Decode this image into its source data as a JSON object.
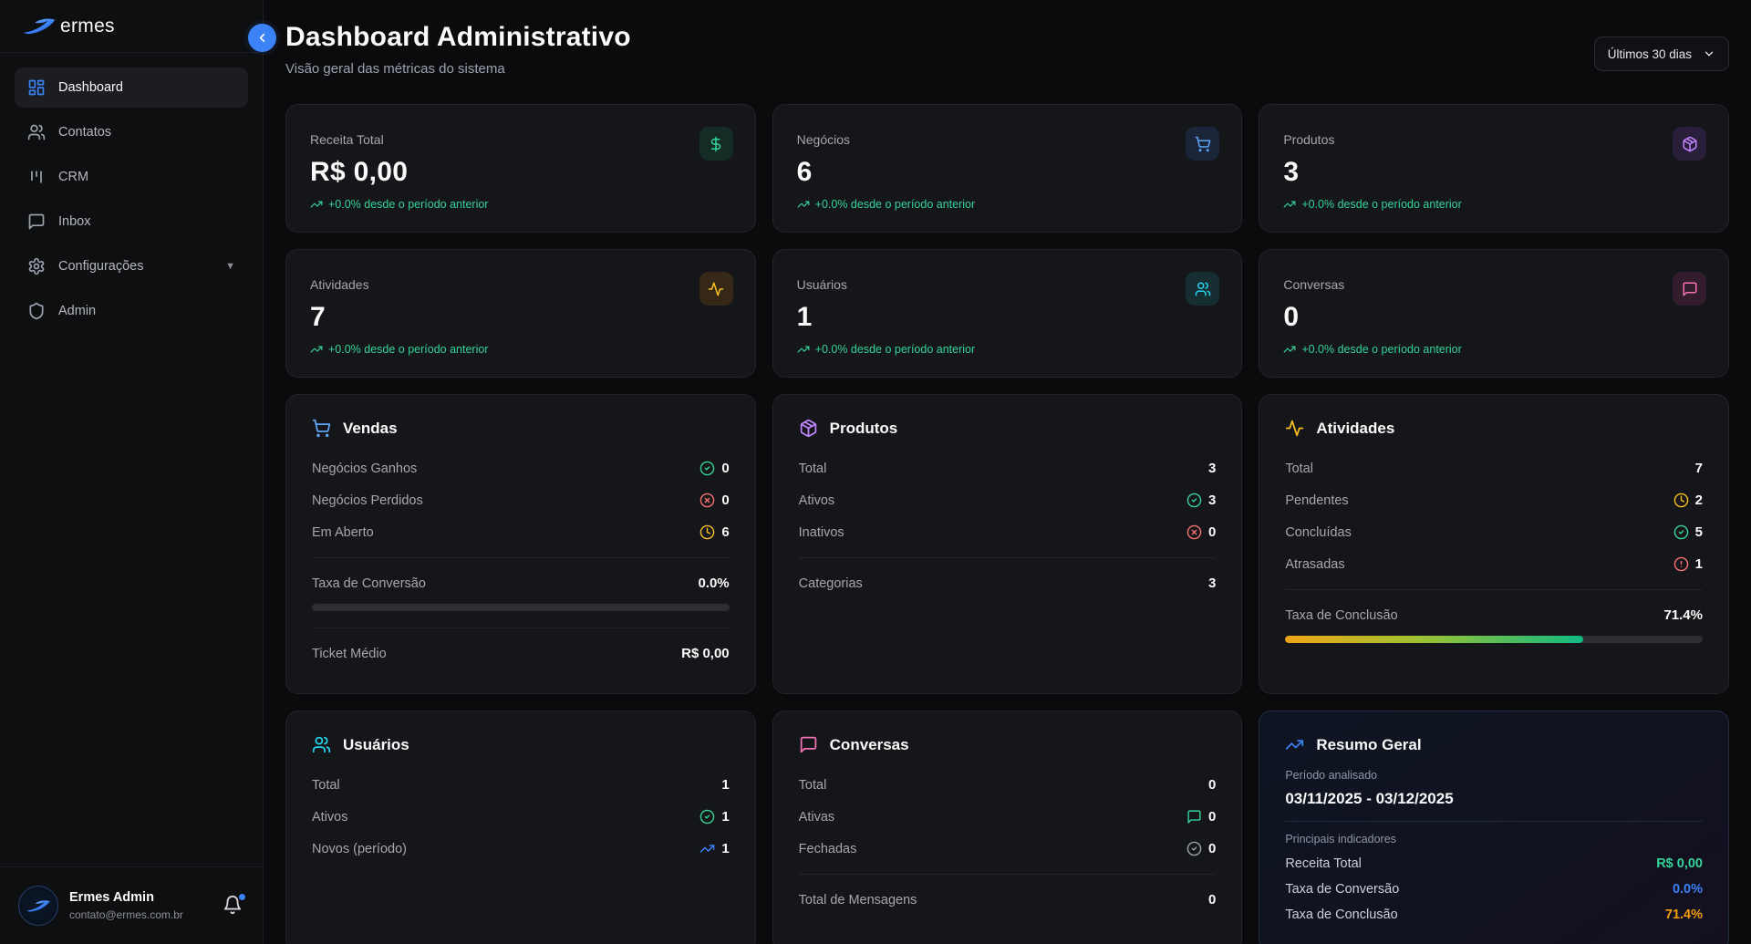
{
  "colors": {
    "accent_blue": "#3b82f6",
    "green": "#34d399",
    "amber": "#f59e0b",
    "purple": "#c084fc",
    "cyan": "#22d3ee",
    "pink": "#f472b6",
    "red": "#f87171"
  },
  "sidebar": {
    "brand": "ermes",
    "items": [
      {
        "label": "Dashboard",
        "icon": "layout-dashboard-icon",
        "active": true
      },
      {
        "label": "Contatos",
        "icon": "users-icon",
        "active": false
      },
      {
        "label": "CRM",
        "icon": "kanban-icon",
        "active": false
      },
      {
        "label": "Inbox",
        "icon": "message-square-icon",
        "active": false
      },
      {
        "label": "Configurações",
        "icon": "gear-icon",
        "active": false,
        "has_submenu": true
      },
      {
        "label": "Admin",
        "icon": "shield-icon",
        "active": false
      }
    ],
    "user": {
      "name": "Ermes Admin",
      "email": "contato@ermes.com.br"
    }
  },
  "header": {
    "title": "Dashboard Administrativo",
    "subtitle": "Visão geral das métricas do sistema",
    "period_select": {
      "value": "Últimos 30 dias"
    }
  },
  "stats": [
    {
      "label": "Receita Total",
      "value": "R$ 0,00",
      "trend": "+0.0% desde o período anterior",
      "icon": "dollar-icon",
      "color": "#34d399"
    },
    {
      "label": "Negócios",
      "value": "6",
      "trend": "+0.0% desde o período anterior",
      "icon": "shopping-cart-icon",
      "color": "#60a5fa"
    },
    {
      "label": "Produtos",
      "value": "3",
      "trend": "+0.0% desde o período anterior",
      "icon": "package-icon",
      "color": "#c084fc"
    },
    {
      "label": "Atividades",
      "value": "7",
      "trend": "+0.0% desde o período anterior",
      "icon": "activity-icon",
      "color": "#fbbf24"
    },
    {
      "label": "Usuários",
      "value": "1",
      "trend": "+0.0% desde o período anterior",
      "icon": "users-icon",
      "color": "#22d3ee"
    },
    {
      "label": "Conversas",
      "value": "0",
      "trend": "+0.0% desde o período anterior",
      "icon": "message-square-icon",
      "color": "#f472b6"
    }
  ],
  "vendas": {
    "title": "Vendas",
    "icon": "shopping-cart-icon",
    "rows": [
      {
        "label": "Negócios Ganhos",
        "value": "0",
        "icon": "circle-check-icon",
        "color": "#34d399"
      },
      {
        "label": "Negócios Perdidos",
        "value": "0",
        "icon": "circle-x-icon",
        "color": "#f87171"
      },
      {
        "label": "Em Aberto",
        "value": "6",
        "icon": "clock-icon",
        "color": "#fbbf24"
      }
    ],
    "conversion_label": "Taxa de Conversão",
    "conversion_value": "0.0%",
    "conversion_pct": 0,
    "ticket_label": "Ticket Médio",
    "ticket_value": "R$ 0,00"
  },
  "produtos": {
    "title": "Produtos",
    "icon": "package-icon",
    "rows": [
      {
        "label": "Total",
        "value": "3",
        "icon": null
      },
      {
        "label": "Ativos",
        "value": "3",
        "icon": "circle-check-icon",
        "color": "#34d399"
      },
      {
        "label": "Inativos",
        "value": "0",
        "icon": "circle-x-icon",
        "color": "#f87171"
      }
    ],
    "categories_label": "Categorias",
    "categories_value": "3"
  },
  "atividades": {
    "title": "Atividades",
    "icon": "activity-icon",
    "rows": [
      {
        "label": "Total",
        "value": "7",
        "icon": null
      },
      {
        "label": "Pendentes",
        "value": "2",
        "icon": "clock-icon",
        "color": "#fbbf24"
      },
      {
        "label": "Concluídas",
        "value": "5",
        "icon": "circle-check-icon",
        "color": "#34d399"
      },
      {
        "label": "Atrasadas",
        "value": "1",
        "icon": "alert-circle-icon",
        "color": "#f87171"
      }
    ],
    "completion_label": "Taxa de Conclusão",
    "completion_value": "71.4%",
    "completion_pct": 71.4
  },
  "usuarios": {
    "title": "Usuários",
    "icon": "users-icon",
    "rows": [
      {
        "label": "Total",
        "value": "1",
        "icon": null
      },
      {
        "label": "Ativos",
        "value": "1",
        "icon": "circle-check-icon",
        "color": "#34d399"
      },
      {
        "label": "Novos (período)",
        "value": "1",
        "icon": "trending-up-icon",
        "color": "#3b82f6"
      }
    ]
  },
  "conversas": {
    "title": "Conversas",
    "icon": "message-square-icon",
    "rows": [
      {
        "label": "Total",
        "value": "0",
        "icon": null
      },
      {
        "label": "Ativas",
        "value": "0",
        "icon": "message-square-icon",
        "color": "#34d399"
      },
      {
        "label": "Fechadas",
        "value": "0",
        "icon": "circle-check-icon",
        "color": "#9ca3af"
      }
    ],
    "messages_label": "Total de Mensagens",
    "messages_value": "0"
  },
  "resumo": {
    "title": "Resumo Geral",
    "icon": "trending-up-icon",
    "period_label": "Período analisado",
    "period_value": "03/11/2025 - 03/12/2025",
    "indicators_label": "Principais indicadores",
    "indicators": [
      {
        "label": "Receita Total",
        "value": "R$ 0,00",
        "color": "#34d399"
      },
      {
        "label": "Taxa de Conversão",
        "value": "0.0%",
        "color": "#3b82f6"
      },
      {
        "label": "Taxa de Conclusão",
        "value": "71.4%",
        "color": "#f59e0b"
      }
    ]
  }
}
